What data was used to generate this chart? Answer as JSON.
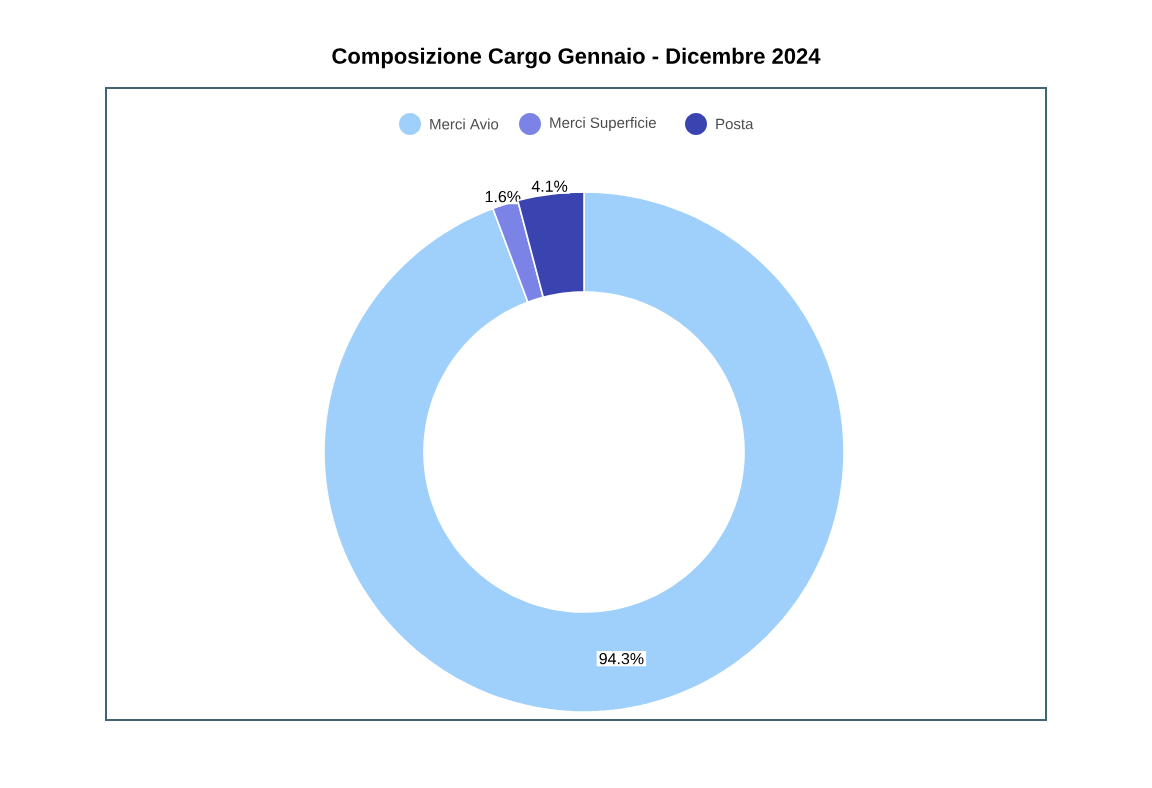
{
  "chart_data": {
    "type": "donut",
    "title": "Composizione Cargo Gennaio - Dicembre 2024",
    "categories": [
      "Merci Avio",
      "Merci Superficie",
      "Posta"
    ],
    "values": [
      94.3,
      1.6,
      4.1
    ],
    "colors": [
      "#9fd0fb",
      "#7b83e6",
      "#3a44b0"
    ],
    "value_labels": [
      "94.3%",
      "1.6%",
      "4.1%"
    ],
    "legend": "top"
  }
}
